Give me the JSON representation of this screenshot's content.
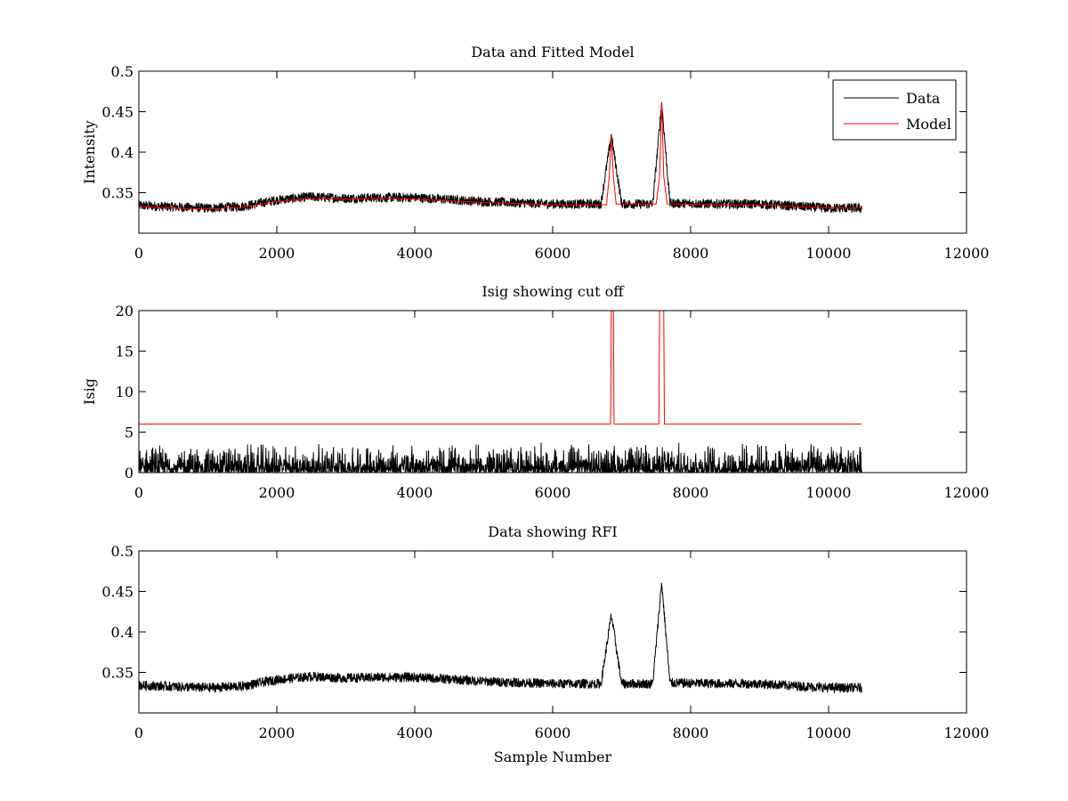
{
  "chart_data": [
    {
      "type": "line",
      "title": "Data and Fitted Model",
      "xlabel": "",
      "ylabel": "Intensity",
      "xlim": [
        0,
        12000
      ],
      "ylim": [
        0.3,
        0.5
      ],
      "xticks": [
        "0",
        "2000",
        "4000",
        "6000",
        "8000",
        "10000",
        "12000"
      ],
      "yticks": [
        "0.35",
        "0.4",
        "0.45",
        "0.5"
      ],
      "grid": false,
      "legend": "top-right",
      "series": [
        {
          "name": "Data",
          "color": "#000000",
          "x_range": [
            0,
            10480
          ],
          "noise_amplitude": 0.006,
          "baseline": [
            [
              0,
              0.334
            ],
            [
              1000,
              0.331
            ],
            [
              1500,
              0.333
            ],
            [
              2000,
              0.341
            ],
            [
              2500,
              0.345
            ],
            [
              3000,
              0.343
            ],
            [
              3500,
              0.344
            ],
            [
              4000,
              0.344
            ],
            [
              5000,
              0.339
            ],
            [
              6000,
              0.336
            ],
            [
              6700,
              0.336
            ],
            [
              6850,
              0.421
            ],
            [
              7000,
              0.336
            ],
            [
              7450,
              0.336
            ],
            [
              7580,
              0.461
            ],
            [
              7700,
              0.337
            ],
            [
              8500,
              0.336
            ],
            [
              9000,
              0.336
            ],
            [
              10000,
              0.331
            ],
            [
              10480,
              0.331
            ]
          ]
        },
        {
          "name": "Model",
          "color": "#ff0000",
          "points": [
            [
              0,
              0.333
            ],
            [
              500,
              0.331
            ],
            [
              1000,
              0.33
            ],
            [
              1500,
              0.332
            ],
            [
              2000,
              0.339
            ],
            [
              2500,
              0.343
            ],
            [
              3000,
              0.342
            ],
            [
              3500,
              0.343
            ],
            [
              4000,
              0.342
            ],
            [
              5000,
              0.338
            ],
            [
              6000,
              0.335
            ],
            [
              6780,
              0.335
            ],
            [
              6820,
              0.37
            ],
            [
              6850,
              0.42
            ],
            [
              6880,
              0.37
            ],
            [
              6920,
              0.336
            ],
            [
              7500,
              0.336
            ],
            [
              7550,
              0.37
            ],
            [
              7580,
              0.462
            ],
            [
              7610,
              0.37
            ],
            [
              7660,
              0.336
            ],
            [
              8500,
              0.335
            ],
            [
              9000,
              0.335
            ],
            [
              10000,
              0.331
            ],
            [
              10480,
              0.331
            ]
          ]
        }
      ]
    },
    {
      "type": "line",
      "title": "Isig showing cut off",
      "xlabel": "",
      "ylabel": "Isig",
      "xlim": [
        0,
        12000
      ],
      "ylim": [
        0,
        20
      ],
      "xticks": [
        "0",
        "2000",
        "4000",
        "6000",
        "8000",
        "10000",
        "12000"
      ],
      "yticks": [
        "0",
        "5",
        "10",
        "15",
        "20"
      ],
      "grid": false,
      "series": [
        {
          "color": "#000000",
          "x_range": [
            0,
            10480
          ],
          "noise_range": [
            0,
            3.8
          ]
        },
        {
          "color": "#ff0000",
          "points": [
            [
              0,
              6
            ],
            [
              6840,
              6
            ],
            [
              6850,
              20
            ],
            [
              6880,
              20
            ],
            [
              6890,
              6
            ],
            [
              7540,
              6
            ],
            [
              7550,
              20
            ],
            [
              7610,
              20
            ],
            [
              7620,
              6
            ],
            [
              10480,
              6
            ]
          ]
        }
      ]
    },
    {
      "type": "line",
      "title": "Data showing RFI",
      "xlabel": "Sample Number",
      "ylabel": "",
      "xlim": [
        0,
        12000
      ],
      "ylim": [
        0.3,
        0.5
      ],
      "xticks": [
        "0",
        "2000",
        "4000",
        "6000",
        "8000",
        "10000",
        "12000"
      ],
      "yticks": [
        "0.35",
        "0.4",
        "0.45",
        "0.5"
      ],
      "grid": false,
      "series": [
        {
          "color": "#000000",
          "x_range": [
            0,
            10480
          ],
          "noise_amplitude": 0.006,
          "baseline": [
            [
              0,
              0.334
            ],
            [
              1000,
              0.331
            ],
            [
              1500,
              0.333
            ],
            [
              2000,
              0.341
            ],
            [
              2500,
              0.345
            ],
            [
              3000,
              0.343
            ],
            [
              3500,
              0.344
            ],
            [
              4000,
              0.344
            ],
            [
              5000,
              0.339
            ],
            [
              6000,
              0.336
            ],
            [
              6700,
              0.336
            ],
            [
              6850,
              0.421
            ],
            [
              7000,
              0.336
            ],
            [
              7450,
              0.336
            ],
            [
              7580,
              0.461
            ],
            [
              7700,
              0.337
            ],
            [
              8500,
              0.336
            ],
            [
              9000,
              0.336
            ],
            [
              10000,
              0.331
            ],
            [
              10480,
              0.331
            ]
          ]
        }
      ]
    }
  ]
}
